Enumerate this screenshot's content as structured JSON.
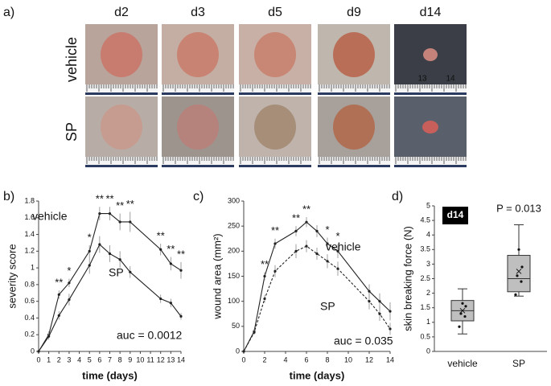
{
  "panel_a": {
    "label": "a)",
    "columns": [
      "d2",
      "d3",
      "d5",
      "d9",
      "d14"
    ],
    "rows": [
      "vehicle",
      "SP"
    ],
    "ruler_labels": [
      "13",
      "14"
    ]
  },
  "chart_data": [
    {
      "type": "line",
      "panel_label": "b)",
      "xlabel": "time (days)",
      "ylabel": "severity score",
      "annotation": "auc = 0.0012",
      "x": [
        0,
        1,
        2,
        3,
        5,
        6,
        7,
        8,
        9,
        12,
        13,
        14
      ],
      "xlim": [
        0,
        14
      ],
      "xticks": [
        0,
        1,
        2,
        3,
        4,
        5,
        6,
        7,
        8,
        9,
        10,
        11,
        12,
        13,
        14
      ],
      "ylim": [
        0,
        1.8
      ],
      "yticks": [
        0,
        0.2,
        0.4,
        0.6,
        0.8,
        1,
        1.2,
        1.4,
        1.6,
        1.8
      ],
      "series": [
        {
          "name": "vehicle",
          "color": "#222222",
          "dashed": false,
          "values": [
            0,
            0.2,
            0.68,
            0.82,
            1.2,
            1.65,
            1.65,
            1.55,
            1.55,
            1.22,
            1.05,
            0.97
          ],
          "errors": [
            0,
            0.04,
            0.05,
            0.05,
            0.07,
            0.08,
            0.08,
            0.1,
            0.12,
            0.07,
            0.08,
            0.1
          ]
        },
        {
          "name": "SP",
          "color": "#222222",
          "dashed": false,
          "values": [
            0,
            0.18,
            0.43,
            0.62,
            1.03,
            1.28,
            1.17,
            1.1,
            0.95,
            0.63,
            0.58,
            0.42
          ],
          "errors": [
            0,
            0.04,
            0.05,
            0.07,
            0.1,
            0.1,
            0.1,
            0.1,
            0.07,
            0.05,
            0.05,
            0.04
          ]
        }
      ],
      "significance": [
        {
          "x": 2,
          "label": "**"
        },
        {
          "x": 3,
          "label": "*"
        },
        {
          "x": 5,
          "label": "*"
        },
        {
          "x": 6,
          "label": "**"
        },
        {
          "x": 7,
          "label": "**"
        },
        {
          "x": 8,
          "label": "**"
        },
        {
          "x": 9,
          "label": "**"
        },
        {
          "x": 12,
          "label": "**"
        },
        {
          "x": 13,
          "label": "**"
        },
        {
          "x": 14,
          "label": "**"
        }
      ]
    },
    {
      "type": "line",
      "panel_label": "c)",
      "xlabel": "time (days)",
      "ylabel": "wound area (mm²)",
      "annotation": "auc = 0.035",
      "x": [
        0,
        1,
        2,
        3,
        5,
        6,
        7,
        8,
        9,
        12,
        13,
        14
      ],
      "xlim": [
        0,
        14
      ],
      "xticks": [
        0,
        2,
        4,
        6,
        8,
        10,
        12,
        14
      ],
      "ylim": [
        0,
        300
      ],
      "yticks": [
        0,
        50,
        100,
        150,
        200,
        250,
        300
      ],
      "series": [
        {
          "name": "vehicle",
          "color": "#222222",
          "dashed": false,
          "values": [
            0,
            40,
            150,
            215,
            240,
            258,
            240,
            215,
            200,
            120,
            100,
            80
          ],
          "errors": [
            0,
            5,
            8,
            10,
            10,
            10,
            12,
            12,
            14,
            14,
            16,
            18
          ]
        },
        {
          "name": "SP",
          "color": "#222222",
          "dashed": true,
          "values": [
            0,
            38,
            105,
            160,
            200,
            210,
            195,
            180,
            165,
            100,
            75,
            45
          ],
          "errors": [
            0,
            5,
            8,
            12,
            14,
            12,
            12,
            14,
            14,
            16,
            14,
            12
          ]
        }
      ],
      "significance": [
        {
          "x": 2,
          "label": "**"
        },
        {
          "x": 3,
          "label": "**"
        },
        {
          "x": 5,
          "label": "**"
        },
        {
          "x": 6,
          "label": "**"
        },
        {
          "x": 8,
          "label": "*"
        },
        {
          "x": 9,
          "label": "*"
        }
      ]
    },
    {
      "type": "box",
      "panel_label": "d)",
      "ylabel": "skin breaking force (N)",
      "annotation": "P = 0.013",
      "badge": "d14",
      "categories": [
        "vehicle",
        "SP"
      ],
      "color": "#bfbfbf",
      "ylim": [
        0,
        5
      ],
      "yticks": [
        0,
        0.5,
        1,
        1.5,
        2,
        2.5,
        3,
        3.5,
        4,
        4.5,
        5
      ],
      "boxes": [
        {
          "min": 0.6,
          "q1": 1.05,
          "median": 1.4,
          "q3": 1.75,
          "max": 2.15,
          "mean": 1.4,
          "points": [
            0.85,
            1.2,
            1.3,
            1.55,
            1.65
          ]
        },
        {
          "min": 1.9,
          "q1": 2.05,
          "median": 2.5,
          "q3": 3.3,
          "max": 4.35,
          "mean": 2.75,
          "points": [
            1.95,
            2.4,
            2.6,
            2.9,
            3.5
          ]
        }
      ]
    }
  ]
}
